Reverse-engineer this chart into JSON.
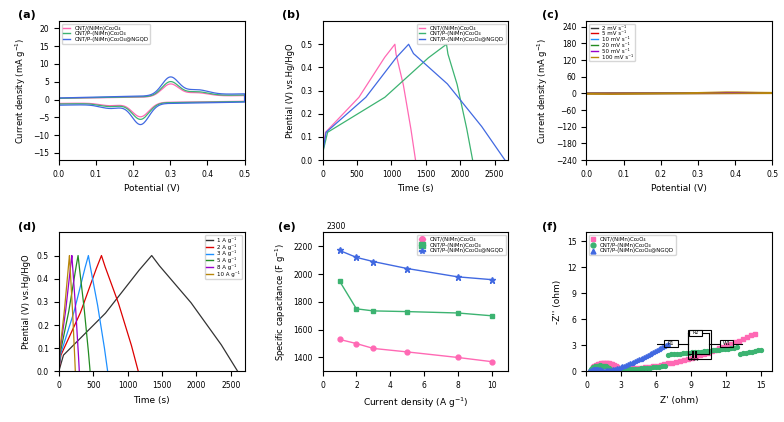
{
  "fig_width": 7.84,
  "fig_height": 4.22,
  "colors": {
    "pink": "#FF69B4",
    "green": "#3CB371",
    "blue": "#4169E1",
    "black": "#111111",
    "red": "#FF2200",
    "dark_blue": "#0000CD",
    "dark_green": "#228B22",
    "purple": "#9900CC",
    "gold": "#DAA520",
    "gray": "#555555"
  },
  "legend_a": [
    "CNT/(NiMn)Co₂O₄",
    "CNT/P-(NiMn)Co₂O₄",
    "CNT/P-(NiMn)Co₂O₄@NGQD"
  ],
  "legend_b": [
    "CNT/(NiMn)Co₂O₄",
    "CNT/P-(NiMn)Co₂O₄",
    "CNT/P-(NiMn)Co₂O₄@NGQD"
  ],
  "legend_c": [
    "2 mV s⁻¹",
    "5 mV s⁻¹",
    "10 mV s⁻¹",
    "20 mV s⁻¹",
    "50 mV s⁻¹",
    "100 mV s⁻¹"
  ],
  "legend_d": [
    "1 A g⁻¹",
    "2 A g⁻¹",
    "3 A g⁻¹",
    "5 A g⁻¹",
    "8 A g⁻¹",
    "10 A g⁻¹"
  ],
  "legend_e": [
    "CNT/(NiMn)Co₂O₄",
    "CNT/P-(NiMn)Co₂O₄",
    "CNT/P-(NiMn)Co₂O₄@NGQD"
  ],
  "legend_f": [
    "CNT/(NiMn)Co₂O₄",
    "CNT/P-(NiMn)Co₂O₄",
    "CNT/P-(NiMn)Co₂O₄@NGQD"
  ]
}
